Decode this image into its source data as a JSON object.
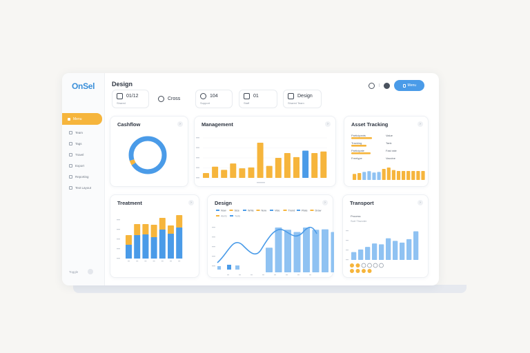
{
  "app": {
    "logo": "OnSel"
  },
  "sidebar": {
    "active": "Menu",
    "items": [
      "Team",
      "Tags",
      "Travel",
      "Export",
      "Reporting",
      "Text Layout"
    ],
    "footer": "Toggle"
  },
  "header": {
    "title": "Design",
    "stats": [
      {
        "value": "01/12",
        "sub": "Shared",
        "icon": "check-square-icon"
      },
      {
        "value": "Cross",
        "sub": "",
        "icon": "user-icon"
      },
      {
        "value": "104",
        "sub": "Support",
        "icon": "progress-ring-icon"
      },
      {
        "value": "01",
        "sub": "Staff",
        "icon": "edit-icon"
      },
      {
        "value": "Design",
        "sub": "Shared Team",
        "icon": "calendar-icon"
      }
    ],
    "separator": "|",
    "primary_button": "Menu"
  },
  "colors": {
    "accent": "#f6b53c",
    "primary": "#4a9be8",
    "bar_light": "#8fc2f2"
  },
  "cards": {
    "donut": {
      "title": "Cashflow"
    },
    "bars": {
      "title": "Management"
    },
    "asset": {
      "title": "Asset Tracking",
      "rows": [
        {
          "label": "Participants",
          "tag": "Value"
        },
        {
          "label": "Tracking",
          "tag": "Tank"
        },
        {
          "label": "Participate",
          "tag": "Fast rate"
        },
        {
          "label": "Freetype",
          "tag": "Vaccine"
        }
      ]
    },
    "stacked": {
      "title": "Treatment"
    },
    "design": {
      "title": "Design",
      "legend": [
        "Now",
        "Size",
        "Write",
        "Now",
        "Vide",
        "Trend",
        "Plate",
        "Draw"
      ],
      "legend2": [
        "Alerts",
        "Tests"
      ]
    },
    "transport": {
      "title": "Transport",
      "subtitle": "Process",
      "subtitle2": "Sort Thunder",
      "dots": 10
    }
  },
  "chart_data": [
    {
      "type": "pie",
      "values": [
        96,
        4
      ]
    },
    {
      "type": "bar",
      "values": [
        12,
        28,
        20,
        36,
        24,
        26,
        88,
        30,
        50,
        62,
        52,
        68,
        62,
        66
      ]
    },
    {
      "type": "bar",
      "values": [
        24,
        30,
        38,
        44,
        34,
        38,
        60,
        70,
        52
      ]
    },
    {
      "type": "bar",
      "series": [
        {
          "values": [
            20,
            34,
            35,
            31,
            42,
            36,
            45
          ]
        },
        {
          "values": [
            14,
            16,
            15,
            18,
            17,
            12,
            18
          ]
        }
      ]
    },
    {
      "type": "bar",
      "values": [
        55,
        100,
        95,
        90,
        100,
        95,
        96,
        90
      ]
    },
    {
      "type": "bar",
      "values": [
        18,
        24,
        30,
        38,
        36,
        50,
        44,
        40,
        48,
        66
      ]
    }
  ]
}
